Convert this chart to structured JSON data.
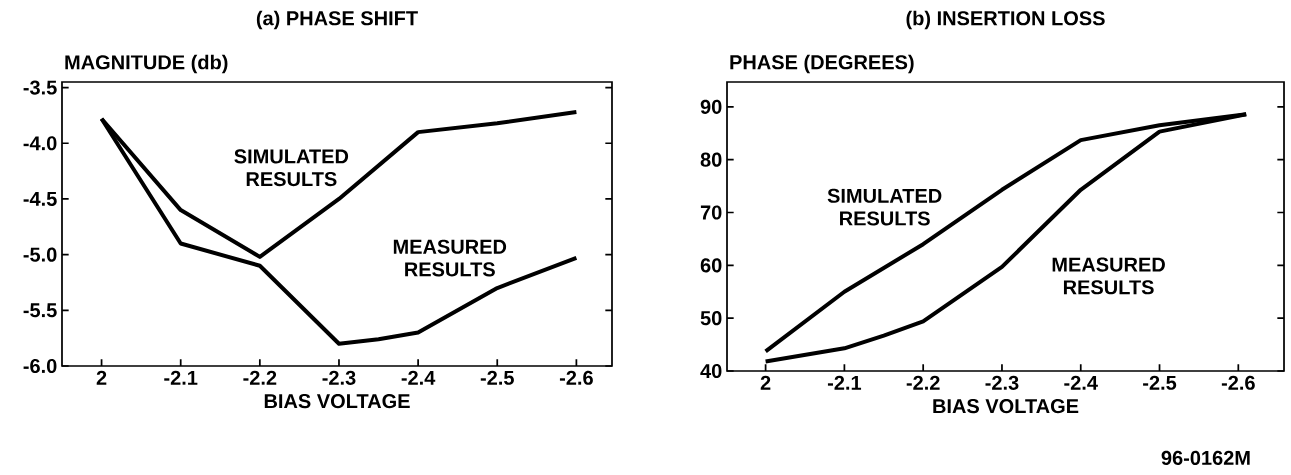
{
  "chart_data": [
    {
      "type": "line",
      "title": "(a)  PHASE SHIFT",
      "xlabel": "BIAS VOLTAGE",
      "ylabel": "MAGNITUDE (db)",
      "x": [
        -2.0,
        -2.1,
        -2.2,
        -2.3,
        -2.4,
        -2.5,
        -2.6
      ],
      "series": [
        {
          "color": "#000000",
          "values": [
            -3.78,
            -4.6,
            -5.02,
            -4.5,
            -3.9,
            -3.82,
            -3.72
          ]
        },
        {
          "color": "#000000",
          "x": [
            -2.0,
            -2.1,
            -2.2,
            -2.3,
            -2.35,
            -2.4,
            -2.5,
            -2.6
          ],
          "values": [
            -3.78,
            -4.9,
            -5.1,
            -5.8,
            -5.76,
            -5.7,
            -5.3,
            -5.03
          ]
        }
      ],
      "xlim": [
        -1.95,
        -2.645
      ],
      "ylim": [
        -6.0,
        -3.45
      ],
      "xticks": [
        {
          "value": -2.0,
          "label": "2"
        },
        -2.1,
        -2.2,
        -2.3,
        -2.4,
        -2.5,
        -2.6
      ],
      "yticks": [
        {
          "value": -6.0,
          "label": "-6.0"
        },
        -5.5,
        {
          "value": -5.0,
          "label": "-5.0"
        },
        -4.5,
        {
          "value": -4.0,
          "label": "-4.0"
        },
        -3.5
      ],
      "annotations": [
        "SIMULATED RESULTS",
        "MEASURED RESULTS"
      ]
    },
    {
      "type": "line",
      "title": "(b)  INSERTION LOSS",
      "xlabel": "BIAS VOLTAGE",
      "ylabel": "PHASE (DEGREES)",
      "x": [
        -2.0,
        -2.1,
        -2.2,
        -2.3,
        -2.4,
        -2.5,
        -2.61
      ],
      "series": [
        {
          "color": "#000000",
          "values": [
            43.7,
            55,
            64,
            74.3,
            83.7,
            86.5,
            88.6
          ]
        },
        {
          "color": "#000000",
          "x": [
            -2.0,
            -2.1,
            -2.15,
            -2.2,
            -2.3,
            -2.4,
            -2.5,
            -2.61
          ],
          "values": [
            41.8,
            44.3,
            46.7,
            49.4,
            59.7,
            74.3,
            85.3,
            88.6
          ]
        }
      ],
      "xlim": [
        -1.951,
        -2.658
      ],
      "ylim": [
        40,
        94.7
      ],
      "xticks": [
        {
          "value": -2.0,
          "label": "2"
        },
        -2.1,
        -2.2,
        -2.3,
        -2.4,
        -2.5,
        -2.6
      ],
      "yticks": [
        40,
        50,
        60,
        70,
        80,
        90
      ],
      "annotations": [
        "SIMULATED RESULTS",
        "MEASURED RESULTS",
        "96-0162M"
      ]
    }
  ]
}
